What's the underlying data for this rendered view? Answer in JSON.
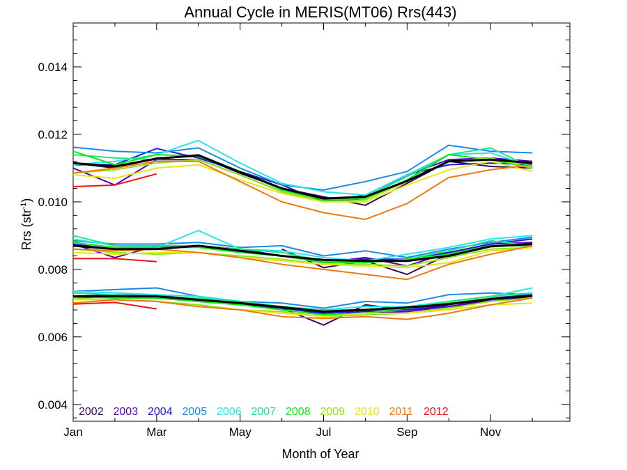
{
  "chart_data": {
    "type": "line",
    "title": "Annual Cycle in MERIS(MT06) Rrs(443)",
    "xlabel": "Month of Year",
    "ylabel": "Rrs (str",
    "ylabel_sup": "-1",
    "ylabel_close": ")",
    "xlim": [
      1,
      12.9
    ],
    "ylim": [
      0.0035,
      0.0153
    ],
    "x_ticks": [
      {
        "value": 1,
        "label": "Jan"
      },
      {
        "value": 3,
        "label": "Mar"
      },
      {
        "value": 5,
        "label": "May"
      },
      {
        "value": 7,
        "label": "Jul"
      },
      {
        "value": 9,
        "label": "Sep"
      },
      {
        "value": 11,
        "label": "Nov"
      }
    ],
    "y_ticks": [
      {
        "value": 0.004,
        "label": "0.004"
      },
      {
        "value": 0.006,
        "label": "0.006"
      },
      {
        "value": 0.008,
        "label": "0.008"
      },
      {
        "value": 0.01,
        "label": "0.010"
      },
      {
        "value": 0.012,
        "label": "0.012"
      },
      {
        "value": 0.014,
        "label": "0.014"
      }
    ],
    "x": [
      1,
      2,
      3,
      4,
      5,
      6,
      7,
      8,
      9,
      10,
      11,
      12
    ],
    "series": [
      {
        "name": "2002",
        "color": "#3a0a5a",
        "groups": [
          [
            0.01115,
            0.011,
            0.0113,
            0.01135,
            0.01085,
            0.0104,
            0.01015,
            0.0099,
            0.01055,
            0.0112,
            0.01105,
            0.011
          ],
          [
            0.0087,
            0.0086,
            0.00865,
            0.0087,
            0.00855,
            null,
            null,
            null,
            null,
            null,
            null,
            null
          ],
          [
            null,
            null,
            null,
            null,
            null,
            0.0086,
            0.00805,
            0.00825,
            0.00785,
            0.00845,
            0.0087,
            0.0087
          ],
          [
            0.0072,
            0.00725,
            0.0072,
            0.00705,
            0.00695,
            0.00685,
            0.00635,
            0.00695,
            0.0068,
            0.0069,
            0.00705,
            0.0072
          ]
        ]
      },
      {
        "name": "2003",
        "color": "#5a00b4",
        "groups": [
          [
            0.011,
            0.0105,
            0.01125,
            0.01125,
            0.0108,
            0.0103,
            0.01,
            0.0102,
            0.0108,
            0.01125,
            0.0113,
            0.0112
          ],
          [
            0.00875,
            0.00835,
            0.0087,
            0.0087,
            0.0086,
            0.0084,
            0.0082,
            0.00835,
            0.0081,
            0.0085,
            0.00875,
            0.0088
          ],
          [
            0.00715,
            0.0072,
            0.00715,
            0.00705,
            0.007,
            0.0069,
            0.00665,
            0.0067,
            0.00675,
            0.0069,
            0.0071,
            0.00725
          ]
        ]
      },
      {
        "name": "2004",
        "color": "#1c1cd4",
        "groups": [
          [
            0.0111,
            0.0111,
            0.01158,
            0.0113,
            0.0109,
            0.0105,
            0.01,
            0.0101,
            0.0108,
            0.0111,
            0.01115,
            0.0111
          ],
          [
            0.00875,
            0.0086,
            0.00865,
            0.0087,
            0.0086,
            0.0084,
            0.00825,
            0.0083,
            0.0083,
            0.0085,
            0.00875,
            0.0089
          ],
          [
            0.0072,
            0.00725,
            0.00725,
            0.0071,
            0.007,
            0.00685,
            0.0067,
            0.00675,
            0.0068,
            0.00695,
            0.00715,
            0.00725
          ]
        ]
      },
      {
        "name": "2005",
        "color": "#1a8ae8",
        "groups": [
          [
            0.01162,
            0.0115,
            0.01145,
            0.0116,
            0.011,
            0.0105,
            0.01035,
            0.0106,
            0.0109,
            0.01168,
            0.0115,
            0.01145
          ],
          [
            0.00885,
            0.00875,
            0.00875,
            0.0088,
            0.00865,
            0.0087,
            0.0084,
            0.00855,
            0.00835,
            0.0086,
            0.0088,
            0.00895
          ],
          [
            0.00735,
            0.0074,
            0.00745,
            0.0072,
            0.00705,
            0.007,
            0.00685,
            0.00705,
            0.007,
            0.00725,
            0.0073,
            0.00725
          ]
        ]
      },
      {
        "name": "2006",
        "color": "#28e6e6",
        "groups": [
          [
            0.0111,
            0.0112,
            0.0114,
            0.01182,
            0.01115,
            0.01055,
            0.0103,
            0.0102,
            0.0108,
            0.0114,
            0.01145,
            0.01105
          ],
          [
            0.0089,
            0.0087,
            0.00865,
            0.00915,
            0.0086,
            0.00855,
            0.00835,
            0.00825,
            0.00845,
            0.00865,
            0.0089,
            0.009
          ],
          [
            0.00735,
            0.0073,
            0.00725,
            0.0072,
            0.00705,
            0.0069,
            0.0068,
            0.0069,
            0.0069,
            0.00705,
            0.0072,
            0.00745
          ]
        ]
      },
      {
        "name": "2007",
        "color": "#1ee68c",
        "groups": [
          [
            0.0114,
            0.0113,
            0.01125,
            0.0114,
            0.0109,
            0.01035,
            0.0101,
            0.01015,
            0.01075,
            0.0114,
            0.0116,
            0.011
          ],
          [
            0.009,
            0.0087,
            0.0087,
            0.0087,
            0.0086,
            0.0085,
            0.00825,
            0.0082,
            0.0083,
            0.00855,
            0.00885,
            0.0087
          ],
          [
            0.0073,
            0.00725,
            0.0072,
            0.00715,
            0.00705,
            0.0069,
            0.0068,
            0.0068,
            0.00685,
            0.00705,
            0.0072,
            0.0073
          ]
        ]
      },
      {
        "name": "2008",
        "color": "#16e616",
        "groups": [
          [
            0.0115,
            0.0111,
            0.0114,
            0.01135,
            0.0109,
            0.01035,
            0.01005,
            0.0101,
            0.01065,
            0.0114,
            0.01125,
            0.011
          ],
          [
            0.0088,
            0.00865,
            0.00865,
            0.00865,
            0.0085,
            0.0084,
            0.0082,
            0.0082,
            0.0083,
            0.00845,
            0.0087,
            0.0087
          ],
          [
            0.0072,
            0.00715,
            0.00715,
            0.00705,
            0.00695,
            0.0068,
            0.00665,
            0.0067,
            0.00685,
            0.007,
            0.00715,
            0.0072
          ]
        ]
      },
      {
        "name": "2009",
        "color": "#8ce61e",
        "groups": [
          [
            0.01085,
            0.01095,
            0.01115,
            0.01125,
            0.0108,
            0.0103,
            0.01,
            0.01005,
            0.0106,
            0.0112,
            0.0113,
            0.011
          ],
          [
            0.0086,
            0.0085,
            0.00845,
            0.0085,
            0.0084,
            0.0083,
            0.00815,
            0.00815,
            0.0081,
            0.00835,
            0.0086,
            0.00865
          ],
          [
            0.00715,
            0.0071,
            0.00705,
            0.00695,
            0.0068,
            0.00675,
            0.0066,
            0.00665,
            0.0067,
            0.00685,
            0.00705,
            0.00715
          ]
        ]
      },
      {
        "name": "2010",
        "color": "#e6e61a",
        "groups": [
          [
            0.0108,
            0.0107,
            0.011,
            0.0111,
            0.01065,
            0.01025,
            0.01,
            0.01,
            0.0105,
            0.01095,
            0.0112,
            0.0109
          ],
          [
            0.0085,
            0.00845,
            0.0085,
            0.0085,
            0.00835,
            0.00825,
            0.00815,
            0.0081,
            0.00805,
            0.0082,
            0.00855,
            0.00865
          ],
          [
            0.0071,
            0.0071,
            0.00705,
            0.0069,
            0.0068,
            0.0067,
            0.0066,
            0.0067,
            0.0067,
            0.0068,
            0.00695,
            0.007
          ]
        ]
      },
      {
        "name": "2011",
        "color": "#f07810",
        "groups": [
          [
            0.01085,
            0.011,
            0.0112,
            0.0112,
            0.0106,
            0.01,
            0.00968,
            0.00948,
            0.00995,
            0.01072,
            0.01095,
            0.0111
          ],
          [
            0.0086,
            0.00855,
            0.0086,
            0.0085,
            0.00835,
            0.00815,
            0.008,
            0.00785,
            0.0077,
            0.00815,
            0.00845,
            0.0087
          ],
          [
            0.007,
            0.0071,
            0.00705,
            0.0069,
            0.0068,
            0.0066,
            0.00655,
            0.0066,
            0.00652,
            0.0067,
            0.00695,
            0.00715
          ]
        ]
      },
      {
        "name": "2012",
        "color": "#e81616",
        "groups": [
          [
            0.01045,
            0.0105,
            0.01083,
            null,
            null,
            null,
            null,
            null,
            null,
            null,
            null,
            null
          ],
          [
            0.00832,
            0.00832,
            0.00823,
            null,
            null,
            null,
            null,
            null,
            null,
            null,
            null,
            null
          ],
          [
            0.00697,
            0.00702,
            0.00683,
            null,
            null,
            null,
            null,
            null,
            null,
            null,
            null,
            null
          ]
        ]
      }
    ],
    "mean": {
      "color": "#000000",
      "groups": [
        [
          0.01115,
          0.01105,
          0.01128,
          0.01138,
          0.01088,
          0.0104,
          0.0101,
          0.01015,
          0.01062,
          0.0112,
          0.01125,
          0.01115
        ],
        [
          0.0087,
          0.0086,
          0.0086,
          0.0087,
          0.00855,
          0.0084,
          0.00828,
          0.00825,
          0.00825,
          0.0084,
          0.00868,
          0.00875
        ],
        [
          0.0072,
          0.0072,
          0.0072,
          0.0071,
          0.007,
          0.00688,
          0.00675,
          0.0068,
          0.00687,
          0.00697,
          0.00712,
          0.00722
        ]
      ]
    },
    "legend": {
      "placement": "bottom-left inside plot"
    }
  }
}
